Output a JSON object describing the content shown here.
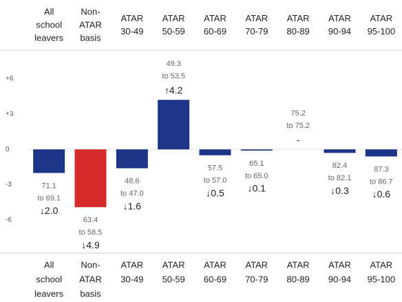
{
  "chart_data": {
    "type": "bar",
    "categories": [
      [
        "All",
        "school",
        "leavers"
      ],
      [
        "Non-",
        "ATAR",
        "basis"
      ],
      [
        "ATAR",
        "30-49"
      ],
      [
        "ATAR",
        "50-59"
      ],
      [
        "ATAR",
        "60-69"
      ],
      [
        "ATAR",
        "70-79"
      ],
      [
        "ATAR",
        "80-89"
      ],
      [
        "ATAR",
        "90-94"
      ],
      [
        "ATAR",
        "95-100"
      ]
    ],
    "values": [
      -2.0,
      -4.9,
      -1.6,
      4.2,
      -0.5,
      -0.1,
      0,
      -0.3,
      -0.6
    ],
    "value_labels": [
      "↓2.0",
      "↓4.9",
      "↓1.6",
      "↑4.2",
      "↓0.5",
      "↓0.1",
      "-",
      "↓0.3",
      "↓0.6"
    ],
    "ranges": [
      {
        "from": "71.1",
        "to": "to 69.1"
      },
      {
        "from": "63.4",
        "to": "to 58.5"
      },
      {
        "from": "48.6",
        "to": "to 47.0"
      },
      {
        "from": "49.3",
        "to": "to 53.5"
      },
      {
        "from": "57.5",
        "to": "to 57.0"
      },
      {
        "from": "65.1",
        "to": "to 65.0"
      },
      {
        "from": "75.2",
        "to": "to 75.2"
      },
      {
        "from": "82.4",
        "to": "to 82.1"
      },
      {
        "from": "87.3",
        "to": "to 86.7"
      }
    ],
    "colors": [
      "#1c3589",
      "#d62b2b",
      "#1c3589",
      "#1c3589",
      "#1c3589",
      "#1c3589",
      "#1c3589",
      "#1c3589",
      "#1c3589"
    ],
    "ylim": [
      -8.8,
      8
    ],
    "yticks": [
      {
        "value": 6,
        "label": "+6"
      },
      {
        "value": 3,
        "label": "+3"
      },
      0,
      -3,
      -6
    ]
  }
}
